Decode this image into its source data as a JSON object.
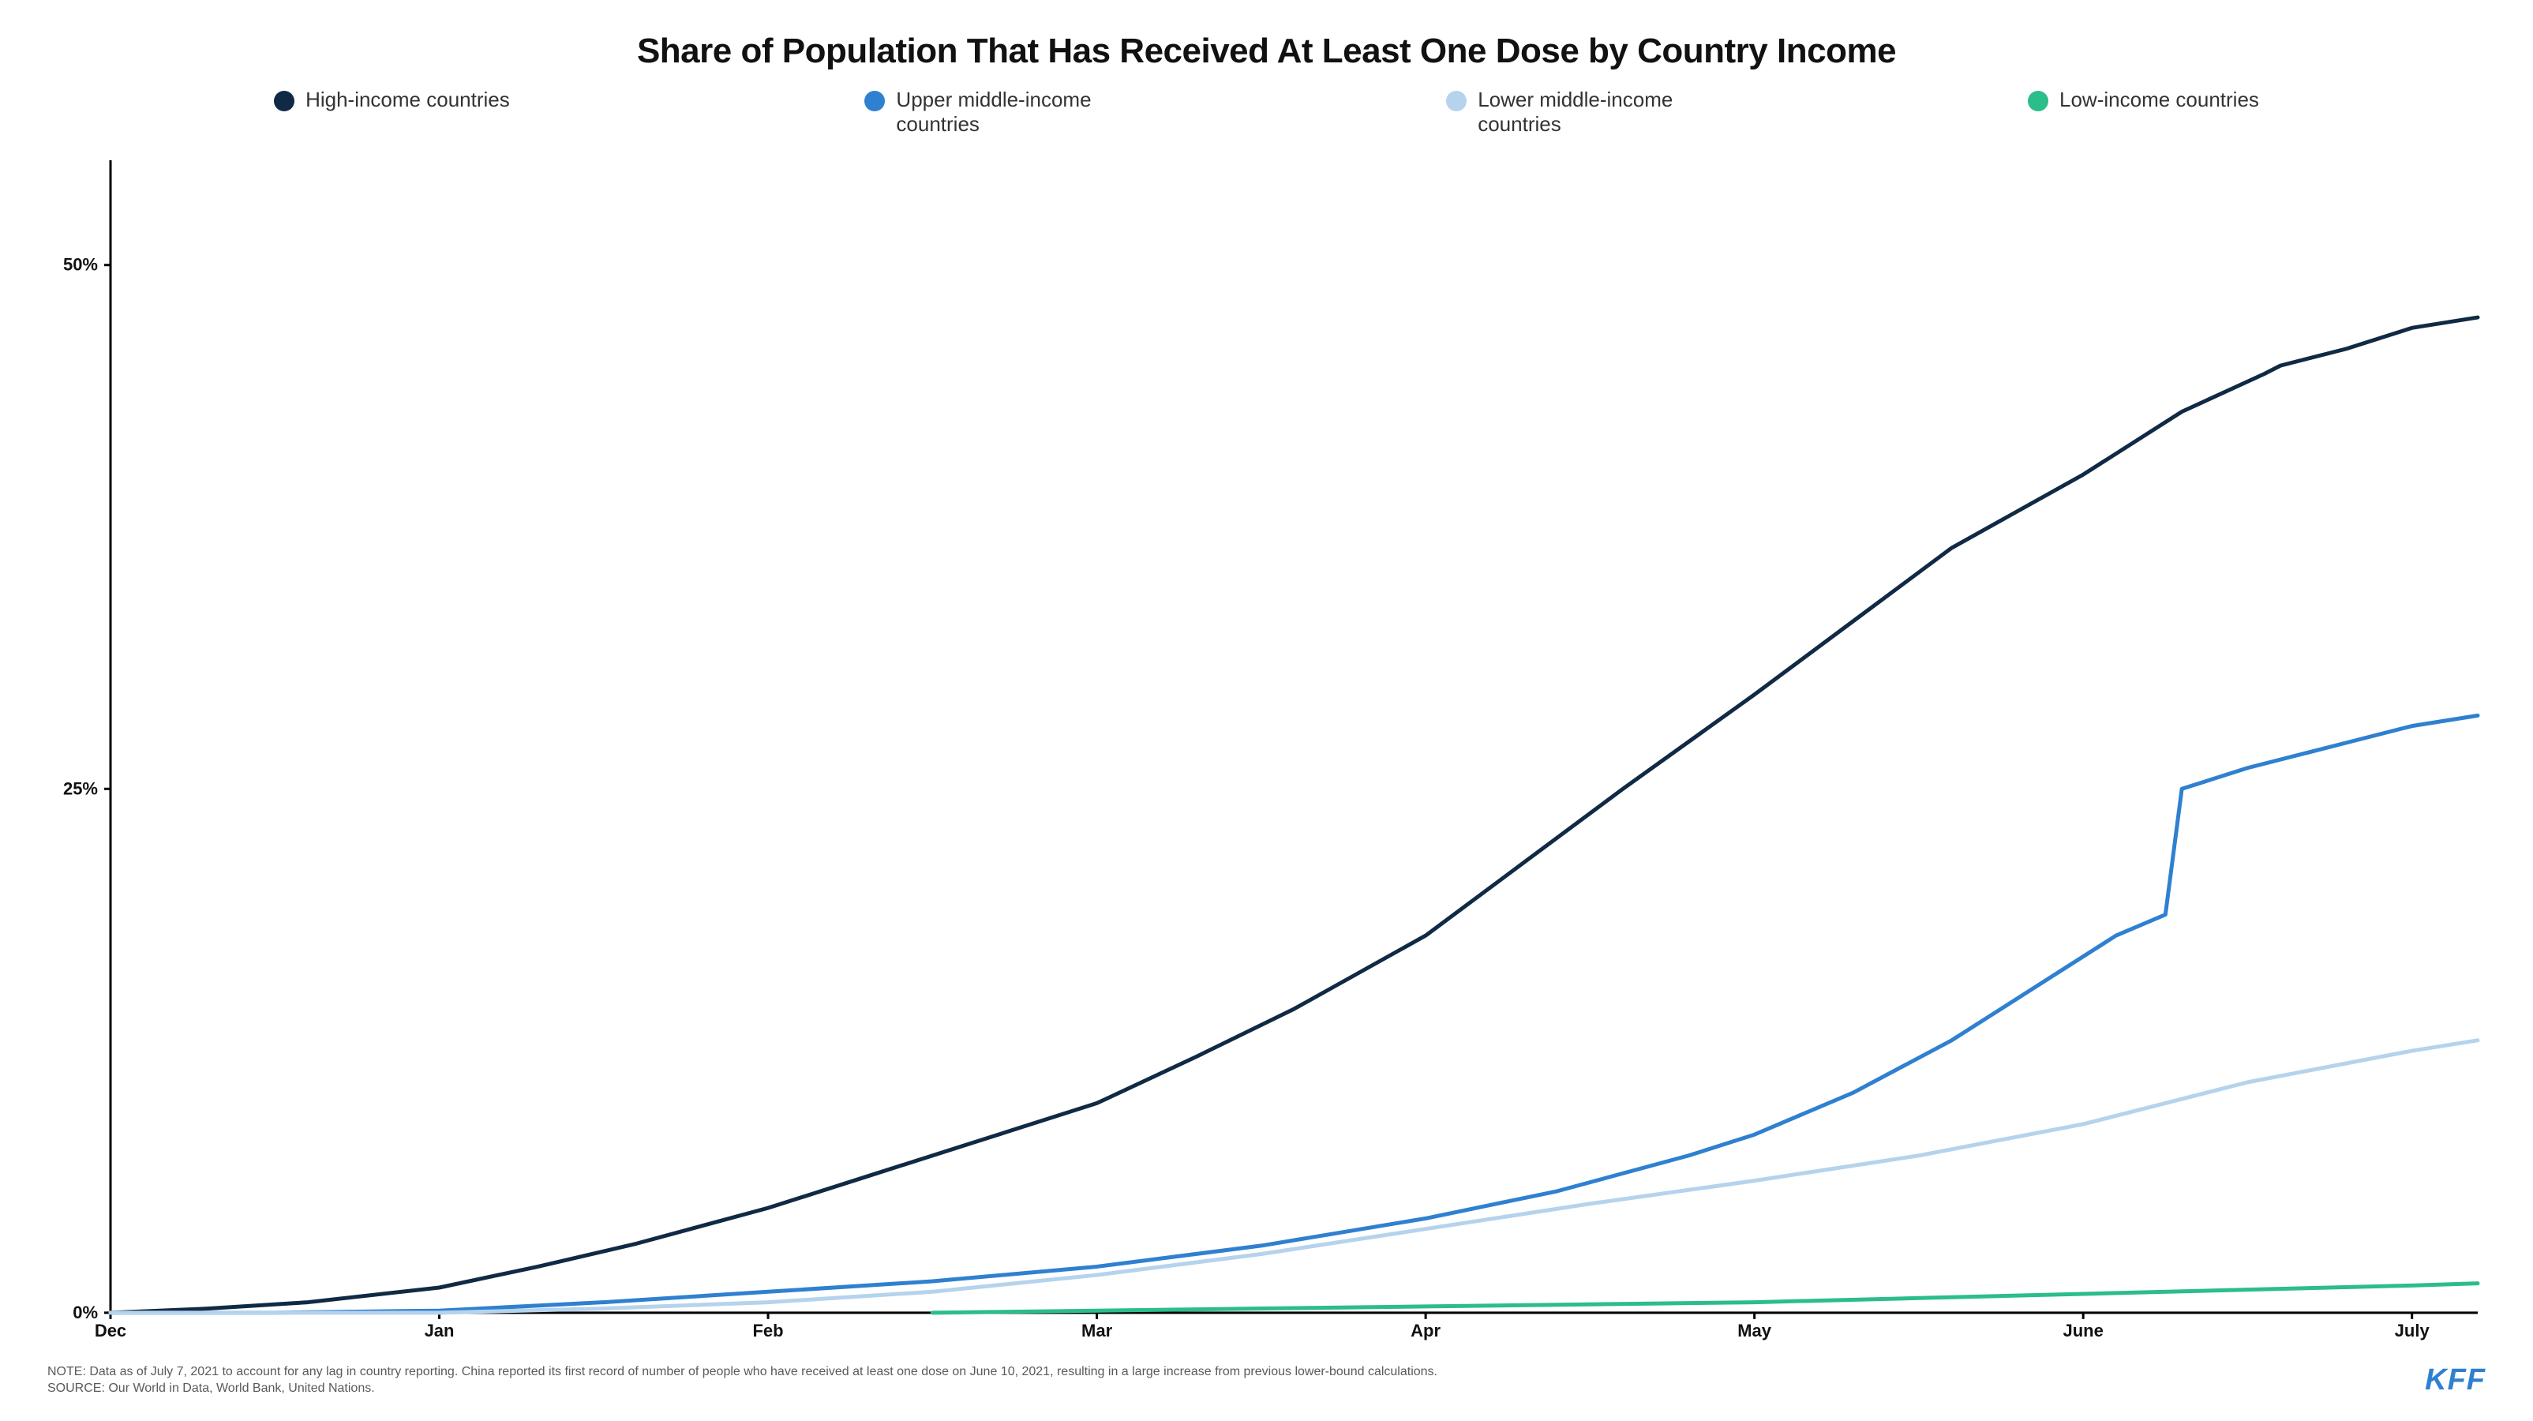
{
  "title": "Share of Population That Has Received At Least One Dose by Country Income",
  "title_fontsize": 44,
  "title_color": "#111111",
  "background_color": "#ffffff",
  "legend": {
    "fontsize": 26,
    "text_color": "#333333",
    "items": [
      {
        "label": "High-income countries",
        "color": "#102a45"
      },
      {
        "label": "Upper middle-income countries",
        "color": "#2f80d0"
      },
      {
        "label": "Lower middle-income countries",
        "color": "#b5d3ec"
      },
      {
        "label": "Low-income countries",
        "color": "#2bbd8a"
      }
    ]
  },
  "chart": {
    "type": "line",
    "x_categories": [
      "Dec",
      "Jan",
      "Feb",
      "Mar",
      "Apr",
      "May",
      "June",
      "July"
    ],
    "y_ticks": [
      0,
      25,
      50
    ],
    "y_tick_labels": [
      "0%",
      "25%",
      "50%"
    ],
    "ylim": [
      0,
      55
    ],
    "xlim": [
      0,
      7.2
    ],
    "axis_color": "#000000",
    "axis_width": 3,
    "tick_length": 8,
    "axis_label_fontsize": 22,
    "line_width": 5,
    "series": [
      {
        "name": "High-income countries",
        "color": "#102a45",
        "points": [
          {
            "x": 0.0,
            "y": 0.0
          },
          {
            "x": 0.3,
            "y": 0.2
          },
          {
            "x": 0.6,
            "y": 0.5
          },
          {
            "x": 1.0,
            "y": 1.2
          },
          {
            "x": 1.3,
            "y": 2.2
          },
          {
            "x": 1.6,
            "y": 3.3
          },
          {
            "x": 2.0,
            "y": 5.0
          },
          {
            "x": 2.3,
            "y": 6.5
          },
          {
            "x": 2.6,
            "y": 8.0
          },
          {
            "x": 3.0,
            "y": 10.0
          },
          {
            "x": 3.3,
            "y": 12.2
          },
          {
            "x": 3.6,
            "y": 14.5
          },
          {
            "x": 4.0,
            "y": 18.0
          },
          {
            "x": 4.3,
            "y": 21.5
          },
          {
            "x": 4.6,
            "y": 25.0
          },
          {
            "x": 5.0,
            "y": 29.5
          },
          {
            "x": 5.3,
            "y": 33.0
          },
          {
            "x": 5.6,
            "y": 36.5
          },
          {
            "x": 6.0,
            "y": 40.0
          },
          {
            "x": 6.3,
            "y": 43.0
          },
          {
            "x": 6.55,
            "y": 44.8
          },
          {
            "x": 6.6,
            "y": 45.2
          },
          {
            "x": 6.8,
            "y": 46.0
          },
          {
            "x": 7.0,
            "y": 47.0
          },
          {
            "x": 7.2,
            "y": 47.5
          }
        ]
      },
      {
        "name": "Upper middle-income countries",
        "color": "#2f80d0",
        "points": [
          {
            "x": 0.0,
            "y": 0.0
          },
          {
            "x": 0.5,
            "y": 0.0
          },
          {
            "x": 1.0,
            "y": 0.1
          },
          {
            "x": 1.5,
            "y": 0.5
          },
          {
            "x": 2.0,
            "y": 1.0
          },
          {
            "x": 2.5,
            "y": 1.5
          },
          {
            "x": 3.0,
            "y": 2.2
          },
          {
            "x": 3.5,
            "y": 3.2
          },
          {
            "x": 4.0,
            "y": 4.5
          },
          {
            "x": 4.4,
            "y": 5.8
          },
          {
            "x": 4.8,
            "y": 7.5
          },
          {
            "x": 5.0,
            "y": 8.5
          },
          {
            "x": 5.3,
            "y": 10.5
          },
          {
            "x": 5.6,
            "y": 13.0
          },
          {
            "x": 5.9,
            "y": 16.0
          },
          {
            "x": 6.1,
            "y": 18.0
          },
          {
            "x": 6.25,
            "y": 19.0
          },
          {
            "x": 6.3,
            "y": 25.0
          },
          {
            "x": 6.5,
            "y": 26.0
          },
          {
            "x": 6.8,
            "y": 27.2
          },
          {
            "x": 7.0,
            "y": 28.0
          },
          {
            "x": 7.2,
            "y": 28.5
          }
        ]
      },
      {
        "name": "Lower middle-income countries",
        "color": "#b5d3ec",
        "points": [
          {
            "x": 0.0,
            "y": 0.0
          },
          {
            "x": 1.0,
            "y": 0.0
          },
          {
            "x": 1.5,
            "y": 0.2
          },
          {
            "x": 2.0,
            "y": 0.5
          },
          {
            "x": 2.5,
            "y": 1.0
          },
          {
            "x": 3.0,
            "y": 1.8
          },
          {
            "x": 3.5,
            "y": 2.8
          },
          {
            "x": 4.0,
            "y": 4.0
          },
          {
            "x": 4.5,
            "y": 5.2
          },
          {
            "x": 5.0,
            "y": 6.3
          },
          {
            "x": 5.5,
            "y": 7.5
          },
          {
            "x": 6.0,
            "y": 9.0
          },
          {
            "x": 6.5,
            "y": 11.0
          },
          {
            "x": 7.0,
            "y": 12.5
          },
          {
            "x": 7.2,
            "y": 13.0
          }
        ]
      },
      {
        "name": "Low-income countries",
        "color": "#2bbd8a",
        "points": [
          {
            "x": 2.5,
            "y": 0.0
          },
          {
            "x": 3.0,
            "y": 0.1
          },
          {
            "x": 3.5,
            "y": 0.2
          },
          {
            "x": 4.0,
            "y": 0.3
          },
          {
            "x": 4.5,
            "y": 0.4
          },
          {
            "x": 5.0,
            "y": 0.5
          },
          {
            "x": 5.5,
            "y": 0.7
          },
          {
            "x": 6.0,
            "y": 0.9
          },
          {
            "x": 6.5,
            "y": 1.1
          },
          {
            "x": 7.0,
            "y": 1.3
          },
          {
            "x": 7.2,
            "y": 1.4
          }
        ]
      }
    ]
  },
  "note": {
    "line1": "NOTE: Data as of July 7, 2021 to account for any lag in country reporting. China reported its first record of number of people who have received at least one dose on June 10, 2021, resulting in a large increase from previous lower-bound calculations.",
    "line2": "SOURCE: Our World in Data, World Bank, United Nations.",
    "fontsize": 16,
    "color": "#5a5a5a"
  },
  "logo": {
    "text": "KFF",
    "color": "#2f80d0",
    "fontsize": 38
  }
}
